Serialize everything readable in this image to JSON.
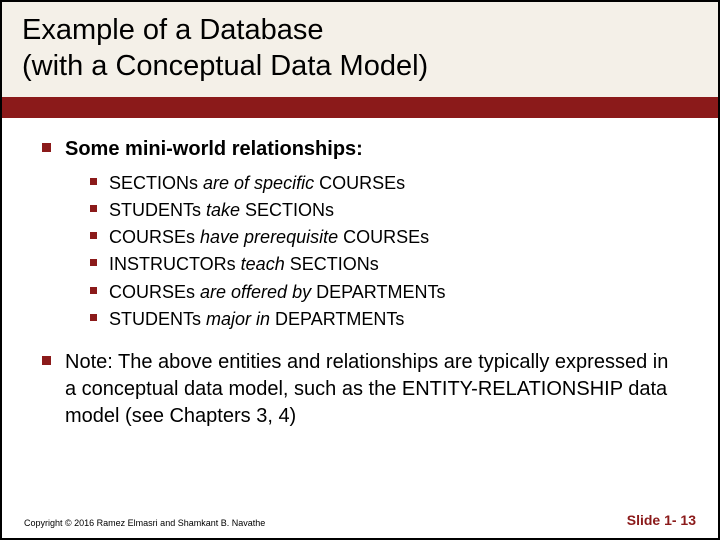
{
  "colors": {
    "accent": "#8b1a1a",
    "title_bg": "#f4f0e8",
    "text": "#000000",
    "page_bg": "#ffffff"
  },
  "title": {
    "line1": "Example of a Database",
    "line2": "(with a Conceptual Data Model)"
  },
  "heading": {
    "prefix": "Some ",
    "bold": "mini-world relationships",
    "suffix": ":"
  },
  "relationships": [
    {
      "a": "SECTIONs ",
      "verb": "are of specific",
      "b": " COURSEs"
    },
    {
      "a": "STUDENTs ",
      "verb": "take",
      "b": " SECTIONs"
    },
    {
      "a": "COURSEs ",
      "verb": "have  prerequisite",
      "b": " COURSEs"
    },
    {
      "a": "INSTRUCTORs ",
      "verb": "teach ",
      "b": " SECTIONs"
    },
    {
      "a": "COURSEs ",
      "verb": "are offered by ",
      "b": " DEPARTMENTs"
    },
    {
      "a": "STUDENTs ",
      "verb": "major in ",
      "b": " DEPARTMENTs"
    }
  ],
  "note": "Note: The above entities and relationships are typically expressed in a conceptual data model, such as the ENTITY-RELATIONSHIP data model (see Chapters 3, 4)",
  "footer": {
    "copyright": "Copyright © 2016 Ramez Elmasri and Shamkant B. Navathe",
    "slidenum": "Slide 1- 13"
  }
}
